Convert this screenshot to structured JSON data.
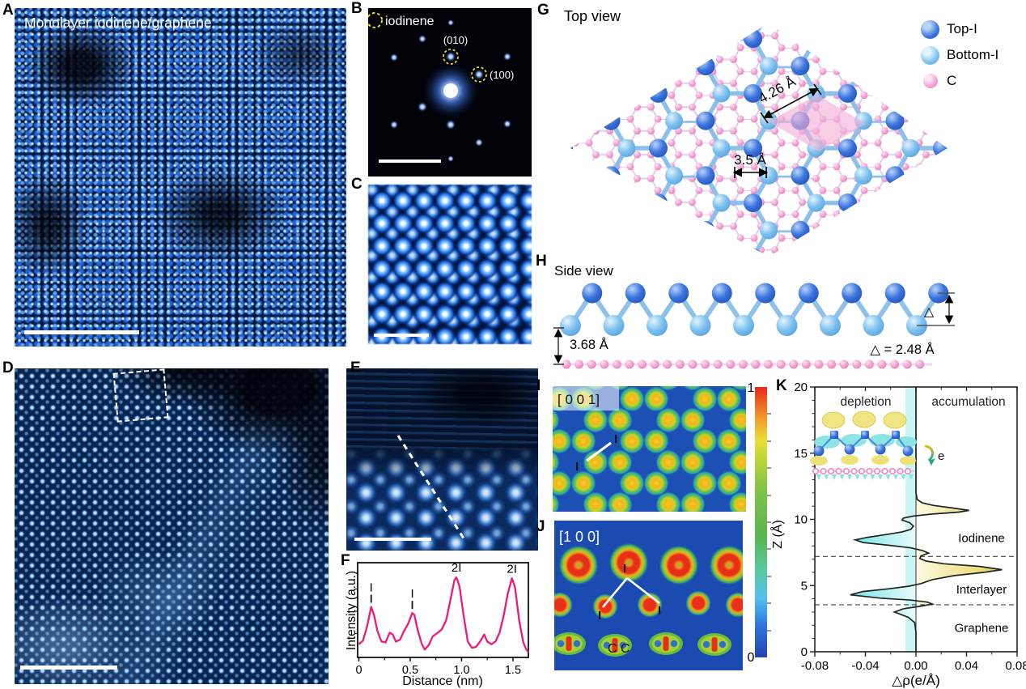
{
  "figure": {
    "panels": {
      "A": {
        "label": "A",
        "caption": "Monolayer iodinene/graphene"
      },
      "B": {
        "label": "B",
        "legend": "iodinene",
        "spot_010": "(010)",
        "spot_100": "(100)"
      },
      "C": {
        "label": "C"
      },
      "D": {
        "label": "D"
      },
      "E": {
        "label": "E"
      },
      "F": {
        "label": "F"
      },
      "G": {
        "label": "G",
        "title": "Top view",
        "legend": [
          {
            "name": "Top-I",
            "color": "#3a74dd"
          },
          {
            "name": "Bottom-I",
            "color": "#7cc0ef"
          },
          {
            "name": "C",
            "color": "#f2a3d3"
          }
        ],
        "dim_lattice": "4.26 Å",
        "dim_bond": "3.5 Å"
      },
      "H": {
        "label": "H",
        "title": "Side view",
        "dim_interlayer": "3.68 Å",
        "delta_symbol": "△",
        "delta_value": "△ = 2.48 Å"
      },
      "I": {
        "label": "I",
        "direction": "[ 0 0 1]",
        "atom_labels": [
          "I",
          "I"
        ]
      },
      "J": {
        "label": "J",
        "direction": "[1 0 0]",
        "atom_labels": [
          "I",
          "I",
          "I"
        ],
        "carbon_label": "C C"
      },
      "K": {
        "label": "K"
      }
    },
    "colorbar": {
      "max": "1",
      "min": "0"
    }
  },
  "chart_data": [
    {
      "id": "panel-F",
      "type": "line",
      "title": "",
      "xlabel": "Distance (nm)",
      "ylabel": "Intensity (a.u.)",
      "xlim": [
        0,
        1.65
      ],
      "ylim": [
        0,
        1
      ],
      "grid": false,
      "line_color": "#ed1a78",
      "xticks": [
        {
          "v": 0,
          "label": "0"
        },
        {
          "v": 0.5,
          "label": "0.5"
        },
        {
          "v": 1.0,
          "label": "1.0"
        },
        {
          "v": 1.5,
          "label": "1.5"
        }
      ],
      "minor_xticks": [
        0.25,
        0.75,
        1.25
      ],
      "points": [
        [
          0,
          0.13
        ],
        [
          0.04,
          0.17
        ],
        [
          0.08,
          0.33
        ],
        [
          0.12,
          0.55
        ],
        [
          0.15,
          0.45
        ],
        [
          0.18,
          0.28
        ],
        [
          0.22,
          0.16
        ],
        [
          0.26,
          0.15
        ],
        [
          0.3,
          0.26
        ],
        [
          0.33,
          0.24
        ],
        [
          0.36,
          0.16
        ],
        [
          0.4,
          0.18
        ],
        [
          0.44,
          0.28
        ],
        [
          0.48,
          0.36
        ],
        [
          0.52,
          0.48
        ],
        [
          0.54,
          0.46
        ],
        [
          0.57,
          0.3
        ],
        [
          0.61,
          0.14
        ],
        [
          0.64,
          0.07
        ],
        [
          0.68,
          0.12
        ],
        [
          0.72,
          0.22
        ],
        [
          0.77,
          0.26
        ],
        [
          0.81,
          0.3
        ],
        [
          0.85,
          0.4
        ],
        [
          0.89,
          0.62
        ],
        [
          0.93,
          0.85
        ],
        [
          0.95,
          0.88
        ],
        [
          0.98,
          0.78
        ],
        [
          1.02,
          0.45
        ],
        [
          1.06,
          0.16
        ],
        [
          1.1,
          0.09
        ],
        [
          1.14,
          0.1
        ],
        [
          1.18,
          0.16
        ],
        [
          1.22,
          0.24
        ],
        [
          1.25,
          0.16
        ],
        [
          1.29,
          0.13
        ],
        [
          1.33,
          0.16
        ],
        [
          1.37,
          0.26
        ],
        [
          1.41,
          0.45
        ],
        [
          1.45,
          0.7
        ],
        [
          1.49,
          0.87
        ],
        [
          1.52,
          0.77
        ],
        [
          1.56,
          0.4
        ],
        [
          1.6,
          0.15
        ],
        [
          1.63,
          0.07
        ],
        [
          1.65,
          0.04
        ]
      ],
      "annotations": [
        {
          "x": 0.12,
          "y": 0.55,
          "label": "I",
          "marker": true
        },
        {
          "x": 0.52,
          "y": 0.48,
          "label": "I",
          "marker": true
        },
        {
          "x": 0.95,
          "y": 0.88,
          "label": "2I",
          "marker": false
        },
        {
          "x": 1.49,
          "y": 0.87,
          "label": "2I",
          "marker": false
        }
      ]
    },
    {
      "id": "panel-K",
      "type": "area-profile",
      "xlabel": "△ρ(e/Å)",
      "ylabel": "Z (Å)",
      "xlim": [
        -0.08,
        0.08
      ],
      "ylim": [
        0,
        20
      ],
      "xticks": [
        {
          "v": -0.08,
          "label": "-0.08"
        },
        {
          "v": -0.04,
          "label": "-0.04"
        },
        {
          "v": 0.0,
          "label": "0.00"
        },
        {
          "v": 0.04,
          "label": "0.04"
        },
        {
          "v": 0.08,
          "label": "0.08"
        }
      ],
      "minor_xticks": [
        -0.06,
        -0.02,
        0.02,
        0.06
      ],
      "yticks": [
        {
          "v": 0,
          "label": "0"
        },
        {
          "v": 5,
          "label": "5"
        },
        {
          "v": 10,
          "label": "10"
        },
        {
          "v": 15,
          "label": "15"
        },
        {
          "v": 20,
          "label": "20"
        }
      ],
      "header_labels": {
        "left": "depletion",
        "right": "accumulation"
      },
      "region_labels": [
        {
          "text": "Iodinene",
          "z": 8.6
        },
        {
          "text": "Interlayer",
          "z": 4.7
        },
        {
          "text": "Graphene",
          "z": 1.8
        }
      ],
      "dashed_z": [
        7.2,
        3.55
      ],
      "electron_label": "e",
      "fill_negative": "#35d8de",
      "fill_positive": "#e0cb3f",
      "points": [
        [
          0,
          0
        ],
        [
          1.5,
          0
        ],
        [
          2.2,
          -0.001
        ],
        [
          2.6,
          -0.006
        ],
        [
          3.0,
          -0.017
        ],
        [
          3.25,
          -0.01
        ],
        [
          3.45,
          0.004
        ],
        [
          3.6,
          0.013
        ],
        [
          3.75,
          0.009
        ],
        [
          3.9,
          -0.004
        ],
        [
          4.05,
          -0.028
        ],
        [
          4.3,
          -0.052
        ],
        [
          4.55,
          -0.042
        ],
        [
          4.75,
          -0.022
        ],
        [
          4.95,
          -0.006
        ],
        [
          5.15,
          0.004
        ],
        [
          5.45,
          0.013
        ],
        [
          5.75,
          0.03
        ],
        [
          6.0,
          0.054
        ],
        [
          6.2,
          0.068
        ],
        [
          6.45,
          0.05
        ],
        [
          6.65,
          0.022
        ],
        [
          6.85,
          0.008
        ],
        [
          7.05,
          0.003
        ],
        [
          7.25,
          0.004
        ],
        [
          7.45,
          0.01
        ],
        [
          7.65,
          0.005
        ],
        [
          7.85,
          -0.004
        ],
        [
          8.05,
          -0.022
        ],
        [
          8.25,
          -0.042
        ],
        [
          8.45,
          -0.048
        ],
        [
          8.65,
          -0.038
        ],
        [
          8.85,
          -0.024
        ],
        [
          9.05,
          -0.011
        ],
        [
          9.25,
          -0.004
        ],
        [
          9.5,
          -0.002
        ],
        [
          9.75,
          -0.005
        ],
        [
          9.95,
          -0.011
        ],
        [
          10.1,
          -0.01
        ],
        [
          10.25,
          -0.002
        ],
        [
          10.4,
          0.012
        ],
        [
          10.55,
          0.034
        ],
        [
          10.68,
          0.042
        ],
        [
          10.85,
          0.03
        ],
        [
          11.05,
          0.014
        ],
        [
          11.25,
          0.005
        ],
        [
          11.5,
          0.001
        ],
        [
          12.0,
          0
        ],
        [
          13.0,
          0
        ],
        [
          20,
          0
        ]
      ]
    }
  ]
}
